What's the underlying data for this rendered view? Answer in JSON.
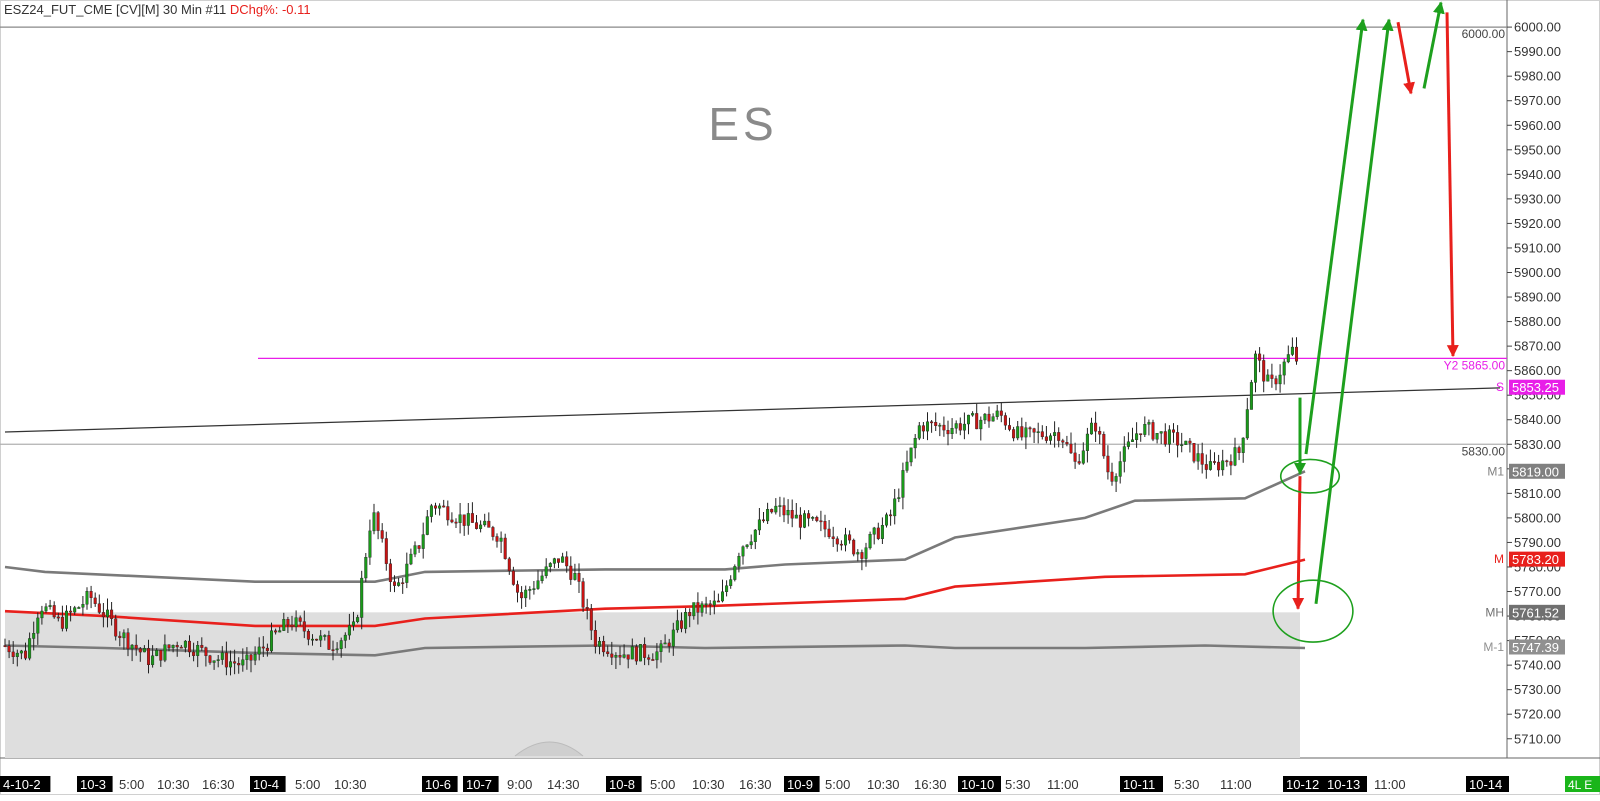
{
  "header": {
    "symbol": "ESZ24_FUT_CME [CV][M] 30 Min #11",
    "dchg_label": "DChg%:",
    "dchg_value": "-0.11"
  },
  "chart_data": {
    "type": "candlestick",
    "title": "ES",
    "ylim": [
      5703,
      6010
    ],
    "y_ticks": [
      "6000.00",
      "5990.00",
      "5980.00",
      "5970.00",
      "5960.00",
      "5950.00",
      "5940.00",
      "5930.00",
      "5920.00",
      "5910.00",
      "5900.00",
      "5890.00",
      "5880.00",
      "5870.00",
      "5860.00",
      "5850.00",
      "5840.00",
      "5830.00",
      "5820.00",
      "5810.00",
      "5800.00",
      "5790.00",
      "5780.00",
      "5770.00",
      "5760.00",
      "5750.00",
      "5740.00",
      "5730.00",
      "5720.00",
      "5710.00"
    ],
    "x_labels": [
      {
        "text": "4-10-2",
        "boxed": true
      },
      {
        "text": "10-3",
        "boxed": true
      },
      {
        "text": "5:00",
        "boxed": false
      },
      {
        "text": "10:30",
        "boxed": false
      },
      {
        "text": "16:30",
        "boxed": false
      },
      {
        "text": "10-4",
        "boxed": true
      },
      {
        "text": "5:00",
        "boxed": false
      },
      {
        "text": "10:30",
        "boxed": false
      },
      {
        "text": "10-6",
        "boxed": true
      },
      {
        "text": "10-7",
        "boxed": true
      },
      {
        "text": "9:00",
        "boxed": false
      },
      {
        "text": "14:30",
        "boxed": false
      },
      {
        "text": "10-8",
        "boxed": true
      },
      {
        "text": "5:00",
        "boxed": false
      },
      {
        "text": "10:30",
        "boxed": false
      },
      {
        "text": "16:30",
        "boxed": false
      },
      {
        "text": "10-9",
        "boxed": true
      },
      {
        "text": "5:00",
        "boxed": false
      },
      {
        "text": "10:30",
        "boxed": false
      },
      {
        "text": "16:30",
        "boxed": false
      },
      {
        "text": "10-10",
        "boxed": true
      },
      {
        "text": "5:30",
        "boxed": false
      },
      {
        "text": "11:00",
        "boxed": false
      },
      {
        "text": "10-11",
        "boxed": true
      },
      {
        "text": "5:30",
        "boxed": false
      },
      {
        "text": "11:00",
        "boxed": false
      },
      {
        "text": "10-12",
        "boxed": true
      },
      {
        "text": "10-13",
        "boxed": true
      },
      {
        "text": "11:00",
        "boxed": false
      },
      {
        "text": "10-14",
        "boxed": true
      }
    ],
    "corner_badge": "4L E",
    "levels": [
      {
        "price": 6000.0,
        "label": "6000.00",
        "style": "horizontal-line",
        "color": "#888888"
      },
      {
        "price": 5830.0,
        "label": "5830.00",
        "style": "horizontal-line",
        "color": "#b0b0b0"
      },
      {
        "price": 5865.0,
        "label": "Y2  5865.00",
        "style": "horizontal-line",
        "color": "#e81ee8"
      },
      {
        "price": 5853.25,
        "label": "5853.25",
        "style": "price-tag",
        "color": "#e81ee8",
        "prefix": "S"
      },
      {
        "price": 5819.0,
        "label": "5819.00",
        "style": "price-tag",
        "color": "#808080",
        "prefix": "M1"
      },
      {
        "price": 5783.2,
        "label": "5783.20",
        "style": "price-tag",
        "color": "#e8201c",
        "prefix": "M"
      },
      {
        "price": 5761.52,
        "label": "5761.52",
        "style": "price-tag",
        "color": "#707070",
        "prefix": "MH"
      },
      {
        "price": 5747.39,
        "label": "5747.39",
        "style": "price-tag",
        "color": "#909090",
        "prefix": "M-1"
      }
    ],
    "trendline": {
      "from": [
        0,
        5835
      ],
      "to": [
        1500,
        5853
      ]
    },
    "shaded_zone": {
      "from_price": 5703,
      "to_price": 5761.52,
      "x_end": 1300
    },
    "series": [
      {
        "name": "M1",
        "color": "#7a7a7a",
        "points": [
          [
            0,
            5780
          ],
          [
            40,
            5778
          ],
          [
            250,
            5774
          ],
          [
            370,
            5774
          ],
          [
            420,
            5778
          ],
          [
            600,
            5779
          ],
          [
            720,
            5779
          ],
          [
            780,
            5781
          ],
          [
            900,
            5783
          ],
          [
            950,
            5792
          ],
          [
            1080,
            5800
          ],
          [
            1130,
            5807
          ],
          [
            1240,
            5808
          ],
          [
            1300,
            5819
          ]
        ]
      },
      {
        "name": "M",
        "color": "#e8201c",
        "points": [
          [
            0,
            5762
          ],
          [
            100,
            5760
          ],
          [
            250,
            5756
          ],
          [
            370,
            5756
          ],
          [
            420,
            5759
          ],
          [
            600,
            5763
          ],
          [
            700,
            5764
          ],
          [
            900,
            5767
          ],
          [
            950,
            5772
          ],
          [
            1100,
            5776
          ],
          [
            1240,
            5777
          ],
          [
            1300,
            5783
          ]
        ]
      },
      {
        "name": "M-1",
        "color": "#7a7a7a",
        "points": [
          [
            0,
            5748
          ],
          [
            100,
            5747
          ],
          [
            250,
            5745
          ],
          [
            370,
            5744
          ],
          [
            420,
            5747
          ],
          [
            600,
            5748
          ],
          [
            700,
            5747
          ],
          [
            900,
            5748
          ],
          [
            950,
            5747
          ],
          [
            1080,
            5747
          ],
          [
            1200,
            5748
          ],
          [
            1300,
            5747
          ]
        ]
      }
    ],
    "price_path": [
      [
        5,
        5748
      ],
      [
        25,
        5744
      ],
      [
        40,
        5765
      ],
      [
        60,
        5757
      ],
      [
        90,
        5768
      ],
      [
        120,
        5753
      ],
      [
        150,
        5742
      ],
      [
        180,
        5750
      ],
      [
        215,
        5743
      ],
      [
        245,
        5740
      ],
      [
        290,
        5758
      ],
      [
        330,
        5748
      ],
      [
        355,
        5755
      ],
      [
        372,
        5803
      ],
      [
        395,
        5770
      ],
      [
        420,
        5790
      ],
      [
        432,
        5806
      ],
      [
        470,
        5798
      ],
      [
        500,
        5793
      ],
      [
        520,
        5767
      ],
      [
        560,
        5784
      ],
      [
        575,
        5776
      ],
      [
        595,
        5750
      ],
      [
        620,
        5745
      ],
      [
        660,
        5745
      ],
      [
        690,
        5762
      ],
      [
        720,
        5765
      ],
      [
        740,
        5788
      ],
      [
        775,
        5804
      ],
      [
        800,
        5799
      ],
      [
        830,
        5795
      ],
      [
        860,
        5786
      ],
      [
        890,
        5800
      ],
      [
        920,
        5838
      ],
      [
        950,
        5837
      ],
      [
        1000,
        5842
      ],
      [
        1020,
        5833
      ],
      [
        1060,
        5835
      ],
      [
        1075,
        5822
      ],
      [
        1095,
        5839
      ],
      [
        1110,
        5816
      ],
      [
        1140,
        5837
      ],
      [
        1180,
        5831
      ],
      [
        1210,
        5820
      ],
      [
        1240,
        5827
      ],
      [
        1255,
        5866
      ],
      [
        1270,
        5853
      ],
      [
        1292,
        5868
      ],
      [
        1300,
        5862
      ]
    ],
    "annotations": [
      {
        "type": "arrow",
        "color": "#1ea01e",
        "from": [
          1300,
          5849
        ],
        "to": [
          1300,
          5818
        ]
      },
      {
        "type": "arrow",
        "color": "#e8201c",
        "from": [
          1300,
          5817
        ],
        "to": [
          1298,
          5763
        ]
      },
      {
        "type": "arrow",
        "color": "#1ea01e",
        "from": [
          1306,
          5826
        ],
        "to": [
          1363,
          6003
        ]
      },
      {
        "type": "arrow",
        "color": "#1ea01e",
        "from": [
          1316,
          5765
        ],
        "to": [
          1389,
          6003
        ]
      },
      {
        "type": "arrow",
        "color": "#e8201c",
        "from": [
          1398,
          6002
        ],
        "to": [
          1411,
          5973
        ]
      },
      {
        "type": "arrow",
        "color": "#1ea01e",
        "from": [
          1424,
          5975
        ],
        "to": [
          1441,
          6010
        ]
      },
      {
        "type": "arrow",
        "color": "#e8201c",
        "from": [
          1447,
          6006
        ],
        "to": [
          1453,
          5866
        ]
      },
      {
        "type": "ellipse",
        "color": "#1ea01e",
        "center": [
          1310,
          5817
        ],
        "rx": 22,
        "ry": 6.5
      },
      {
        "type": "ellipse",
        "color": "#1ea01e",
        "center": [
          1313,
          5762
        ],
        "rx": 30,
        "ry": 12
      }
    ]
  }
}
